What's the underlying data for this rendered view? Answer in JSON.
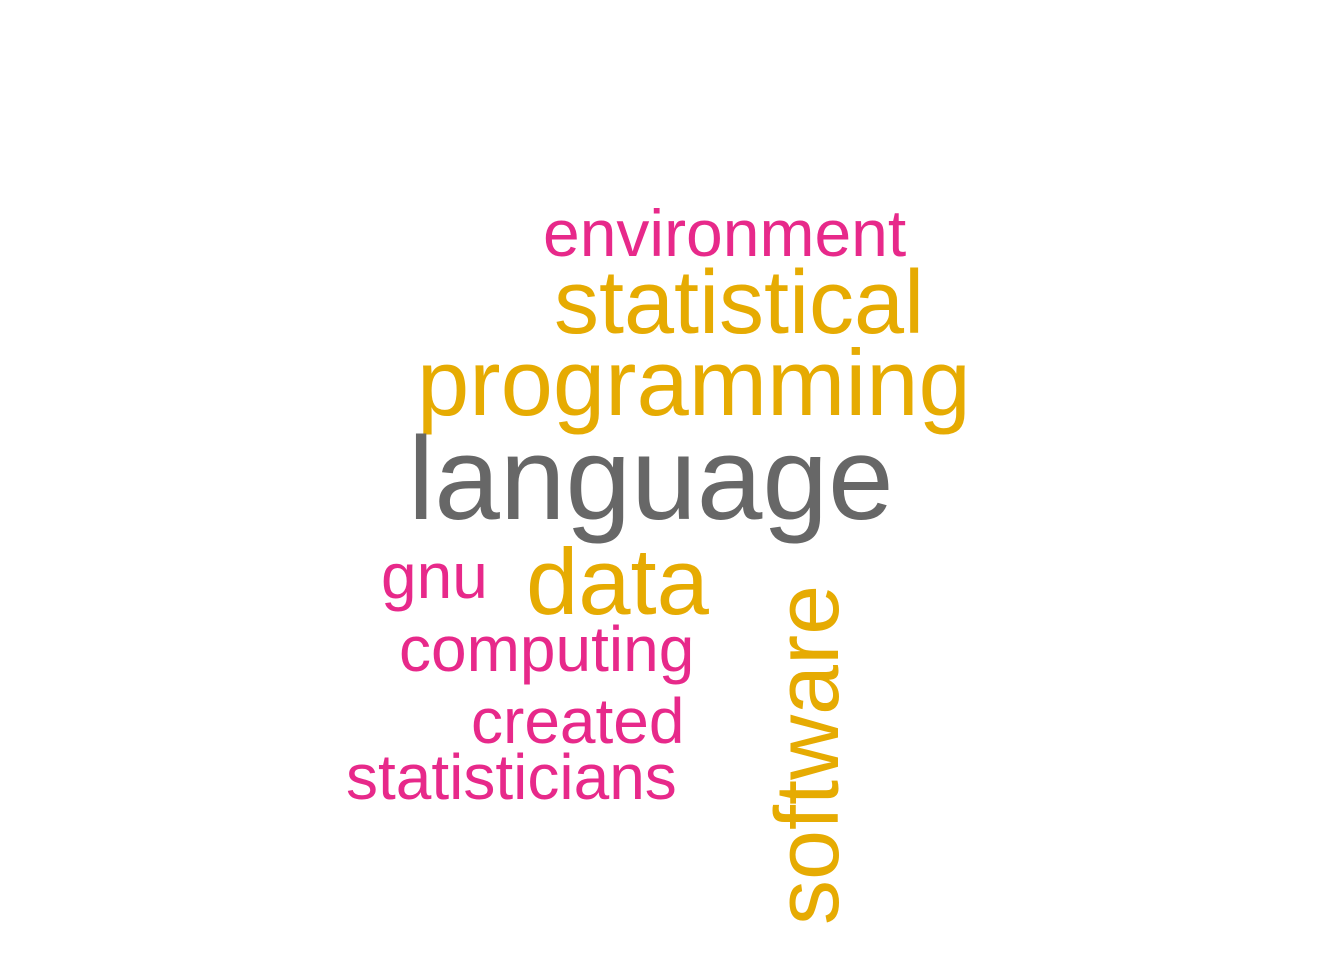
{
  "colors": {
    "high": "#676767",
    "mid": "#e6ab02",
    "low": "#e7298a",
    "background": "#ffffff"
  },
  "words": [
    {
      "text": "environment",
      "tier": "low"
    },
    {
      "text": "statistical",
      "tier": "mid"
    },
    {
      "text": "programming",
      "tier": "mid"
    },
    {
      "text": "language",
      "tier": "high"
    },
    {
      "text": "gnu",
      "tier": "low"
    },
    {
      "text": "data",
      "tier": "mid"
    },
    {
      "text": "software",
      "tier": "mid"
    },
    {
      "text": "computing",
      "tier": "low"
    },
    {
      "text": "created",
      "tier": "low"
    },
    {
      "text": "statisticians",
      "tier": "low"
    }
  ]
}
